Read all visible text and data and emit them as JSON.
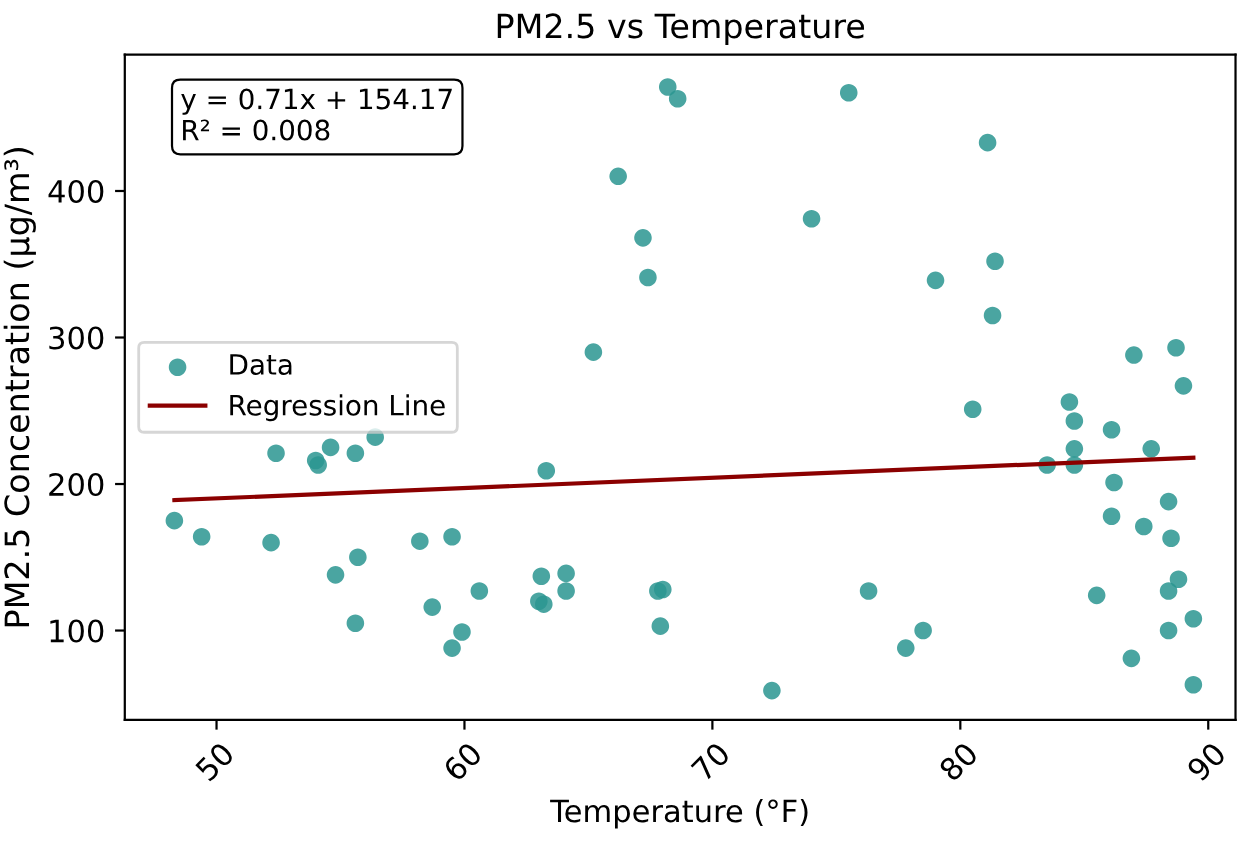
{
  "chart_data": {
    "type": "scatter",
    "title": "PM2.5 vs Temperature",
    "xlabel": "Temperature (°F)",
    "ylabel": "PM2.5 Concentration (µg/m³)",
    "annotations": [
      "y = 0.71x + 154.17\nR² = 0.008"
    ],
    "xlim": [
      46.3,
      91.1
    ],
    "ylim": [
      39,
      493
    ],
    "xticks": [
      50,
      60,
      70,
      80,
      90
    ],
    "yticks": [
      100,
      200,
      300,
      400
    ],
    "grid": false,
    "legend": "left",
    "series": [
      {
        "name": "Data",
        "color": "#2a9590",
        "marker": "circle",
        "x": [
          48.3,
          49.4,
          52.4,
          52.2,
          54,
          54.1,
          54.6,
          55.6,
          56.4,
          54.8,
          55.7,
          55.6,
          58.2,
          58.7,
          59.5,
          59.5,
          59.9,
          60.6,
          63.3,
          63.1,
          63,
          63.2,
          64.1,
          64.1,
          67.8,
          68,
          67.9,
          68.2,
          68.6,
          66.2,
          67.2,
          67.4,
          65.2,
          75.5,
          81.1,
          74,
          79,
          81.4,
          81.3,
          87,
          88.7,
          89,
          72.4,
          76.3,
          78.5,
          77.8,
          80.5,
          84.4,
          84.6,
          84.6,
          83.5,
          84.6,
          86.1,
          86.2,
          87.7,
          86.1,
          87.4,
          88.4,
          88.5,
          88.8,
          88.4,
          85.5,
          89.4,
          88.4,
          86.9,
          89.4
        ],
        "values": [
          175,
          164,
          221,
          160,
          216,
          213,
          225,
          221,
          232,
          138,
          150,
          105,
          161,
          116,
          164,
          88,
          99,
          127,
          209,
          137,
          120,
          118,
          139,
          127,
          127,
          128,
          103,
          471,
          463,
          410,
          368,
          341,
          290,
          467,
          433,
          381,
          339,
          352,
          315,
          288,
          293,
          267,
          59,
          127,
          100,
          88,
          251,
          256,
          243,
          224,
          213,
          213,
          237,
          201,
          224,
          178,
          171,
          188,
          163,
          135,
          127,
          124,
          108,
          100,
          81,
          63
        ]
      },
      {
        "name": "Regression Line",
        "color": "#8b0000",
        "type": "line",
        "x": [
          48.3,
          89.4
        ],
        "values": [
          189,
          218
        ]
      }
    ]
  }
}
